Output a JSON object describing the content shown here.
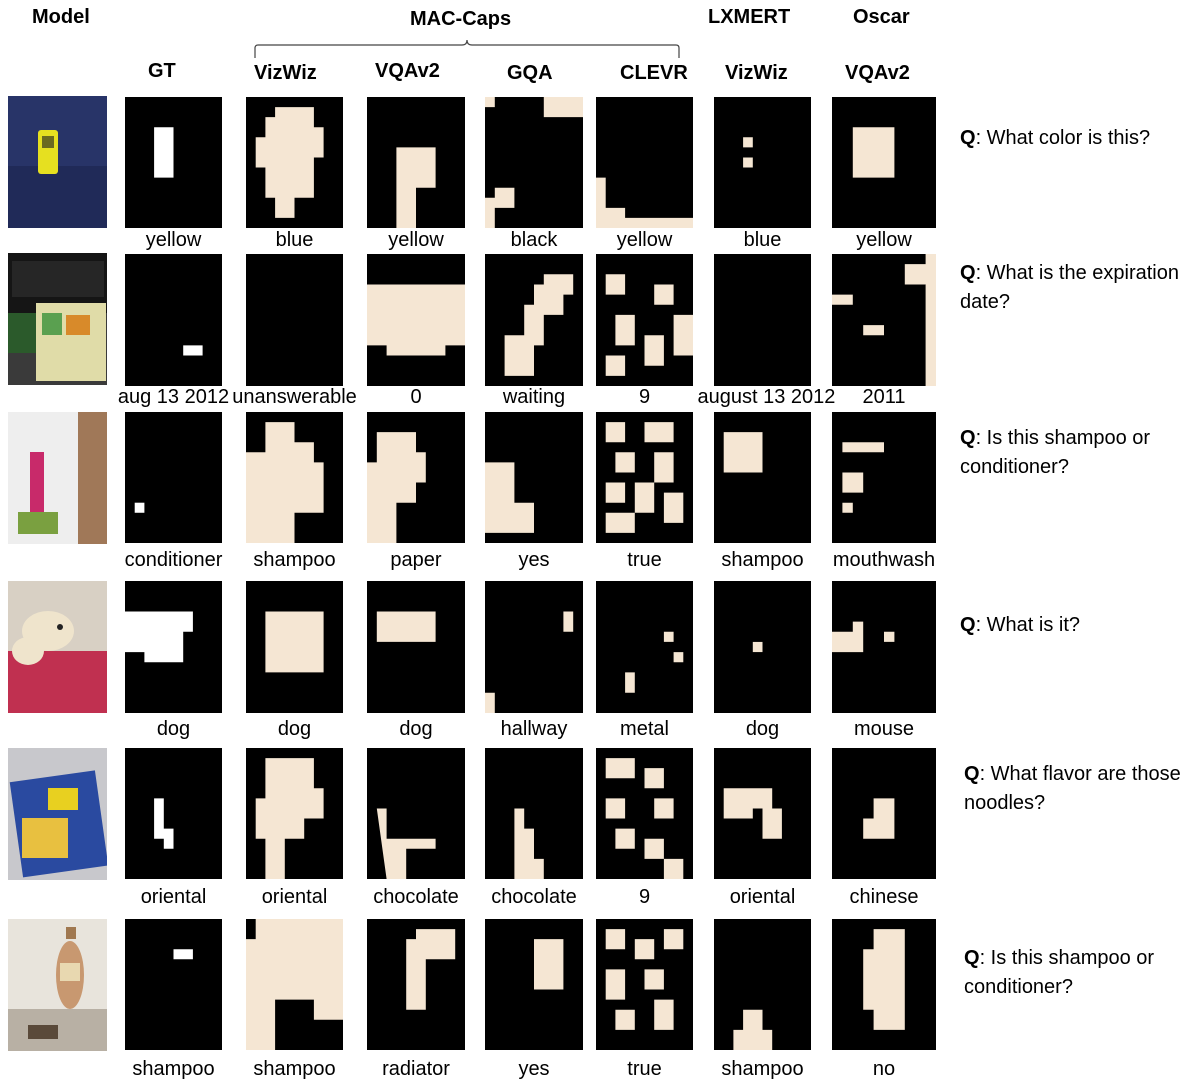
{
  "headers": {
    "model": "Model",
    "mac_caps": "MAC-Caps",
    "lxmert": "LXMERT",
    "oscar": "Oscar",
    "columns": [
      "GT",
      "VizWiz",
      "VQAv2",
      "GQA",
      "CLEVR",
      "VizWiz",
      "VQAv2"
    ]
  },
  "mask_color": "#f5e6d3",
  "rows": [
    {
      "question_label": "Q",
      "question_text": ": What color is this?",
      "answers": [
        "yellow",
        "blue",
        "yellow",
        "black",
        "yellow",
        "blue",
        "yellow"
      ]
    },
    {
      "question_label": "Q",
      "question_text": ": What is the expiration date?",
      "answers": [
        "aug 13 2012",
        "unanswerable",
        "0",
        "waiting",
        "9",
        "august 13 2012",
        "2011"
      ]
    },
    {
      "question_label": "Q",
      "question_text": ": Is this shampoo or conditioner?",
      "answers": [
        "conditioner",
        "shampoo",
        "paper",
        "yes",
        "true",
        "shampoo",
        "mouthwash"
      ]
    },
    {
      "question_label": "Q",
      "question_text": ": What is it?",
      "answers": [
        "dog",
        "dog",
        "dog",
        "hallway",
        "metal",
        "dog",
        "mouse"
      ]
    },
    {
      "question_label": "Q",
      "question_text": ": What flavor are those noodles?",
      "answers": [
        "oriental",
        "oriental",
        "chocolate",
        "chocolate",
        "9",
        "oriental",
        "chinese"
      ]
    },
    {
      "question_label": "Q",
      "question_text": ": Is this shampoo or conditioner?",
      "answers": [
        "shampoo",
        "shampoo",
        "radiator",
        "yes",
        "true",
        "shampoo",
        "no"
      ]
    }
  ]
}
